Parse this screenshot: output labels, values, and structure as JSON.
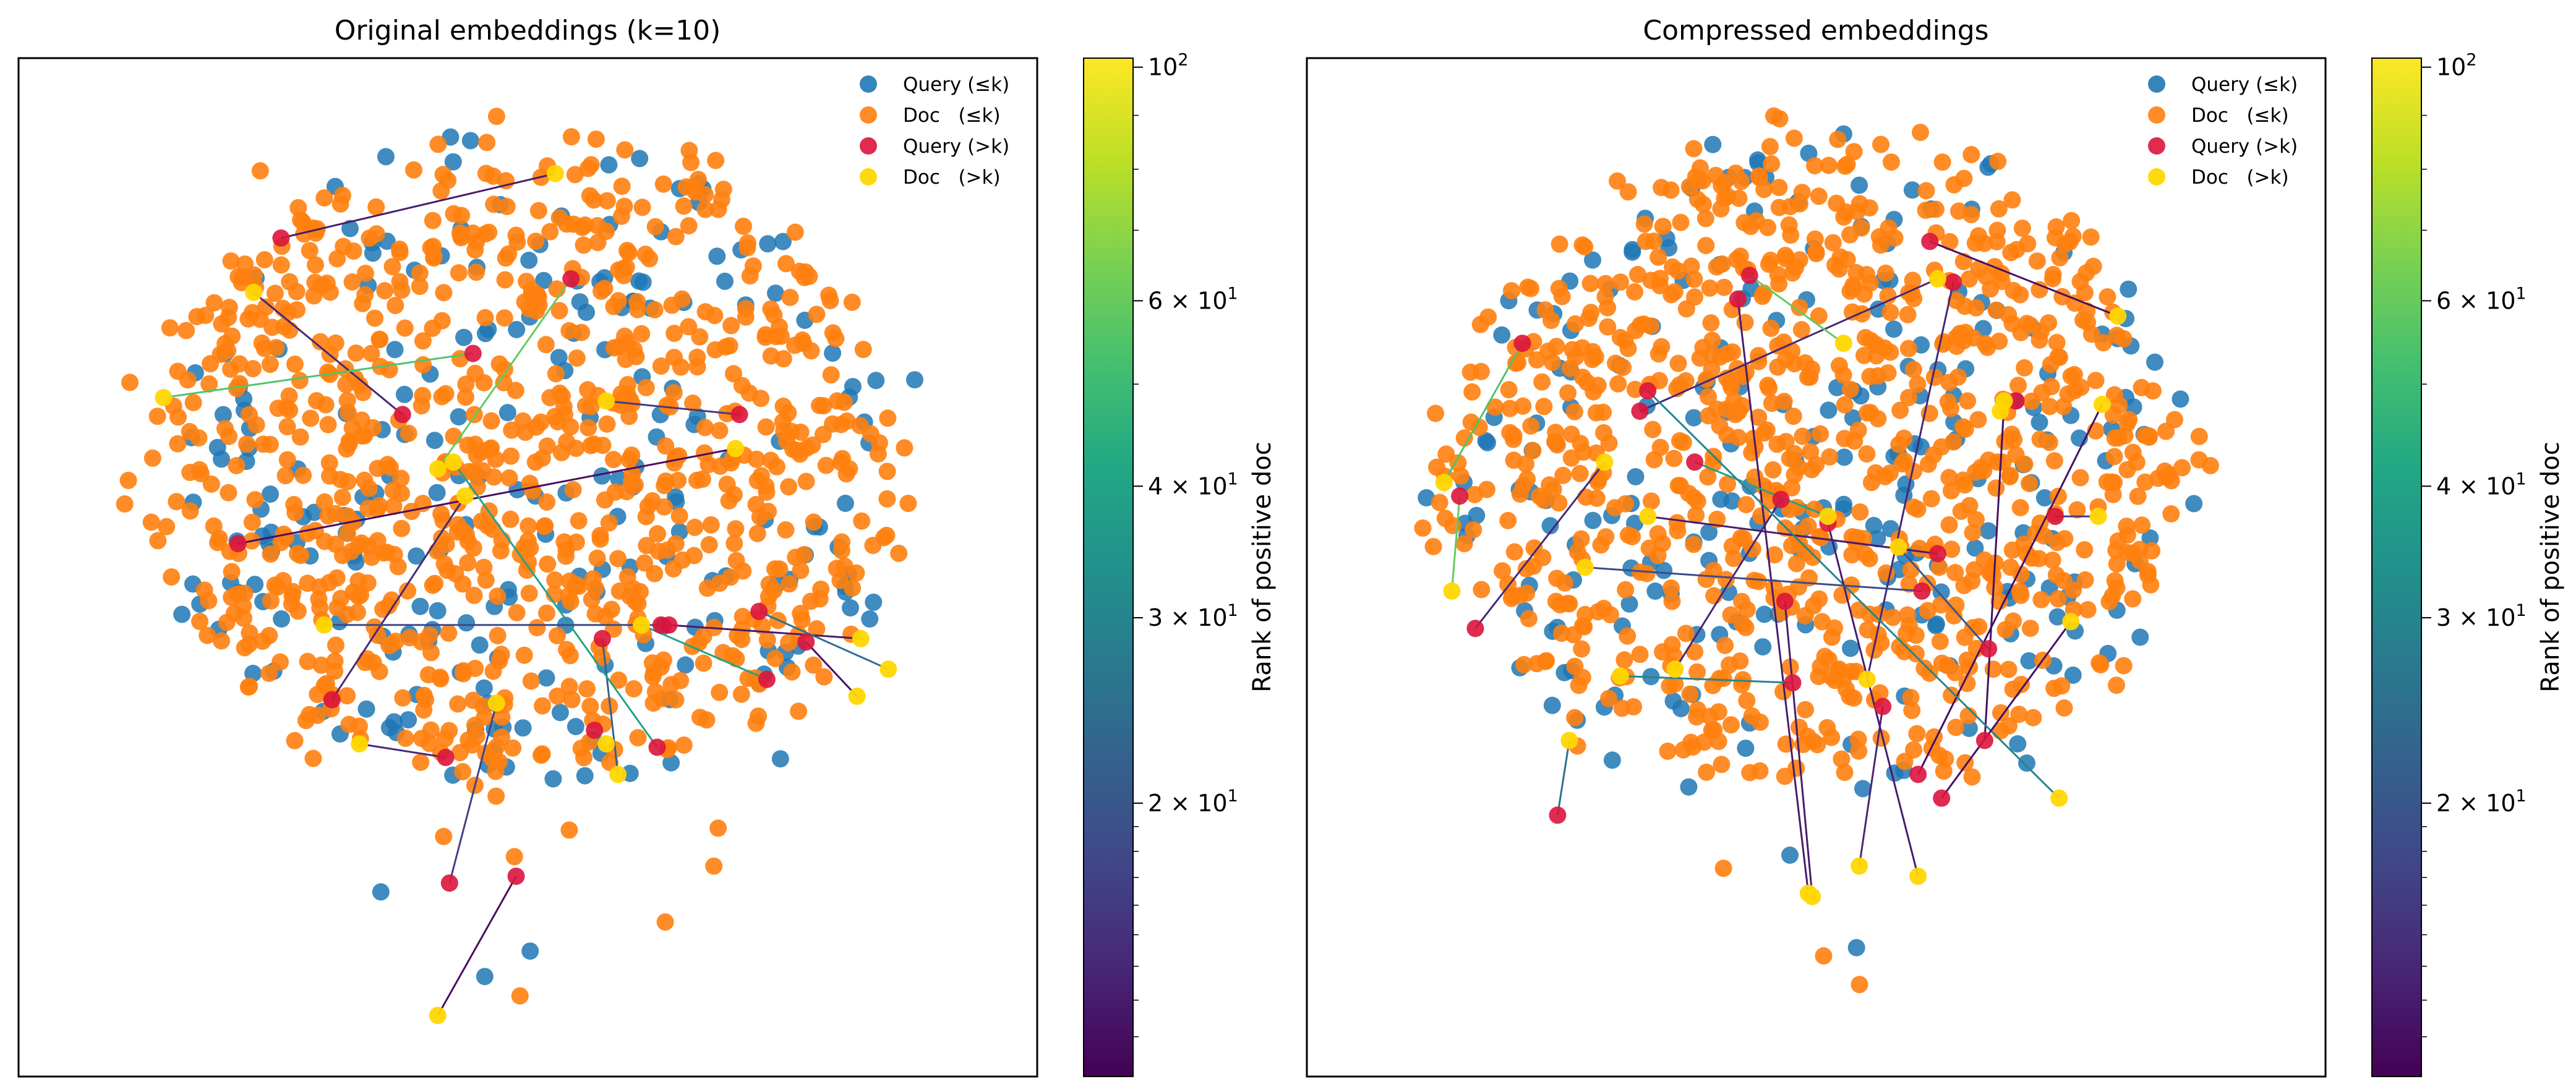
{
  "figure": {
    "colormap": "viridis",
    "colors": {
      "query_le_k": "#1f77b4",
      "doc_le_k": "#ff7f0e",
      "query_gt_k": "#dc143c",
      "doc_gt_k": "#ffd700"
    }
  },
  "chart_data": [
    {
      "type": "scatter",
      "title": "Original embeddings (k=10)",
      "legend": {
        "placement": "top-right",
        "entries": [
          "Query (≤k)",
          "Doc   (≤k)",
          "Query (>k)",
          "Doc   (>k)"
        ]
      },
      "axes_visible": false,
      "colorbar": {
        "label": "Rank of positive doc",
        "scale": "log",
        "range": [
          11,
          102
        ],
        "ticks": [
          {
            "value": 100,
            "base": "10",
            "exp": "2"
          },
          {
            "value": 60,
            "base": "6 × 10",
            "exp": "1"
          },
          {
            "value": 40,
            "base": "4 × 10",
            "exp": "1"
          },
          {
            "value": 30,
            "base": "3 × 10",
            "exp": "1"
          },
          {
            "value": 20,
            "base": "2 × 10",
            "exp": "1"
          }
        ]
      },
      "cloud": {
        "cx": 0,
        "cy": 0,
        "rx": 9.5,
        "ry": 9.5,
        "query_count": 230,
        "doc_count": 900,
        "seed": 7
      },
      "series": [
        {
          "name": "Query (>k)",
          "x": [
            -6.3,
            -3.2,
            -1.4,
            1.1,
            5.4,
            -7.4,
            3.6,
            5.9,
            7.1,
            -5.0,
            1.9,
            1.7,
            -2.1,
            -2.0,
            3.3,
            6.1,
            3.4,
            -0.3
          ],
          "y": [
            6.7,
            1.5,
            3.3,
            5.5,
            1.5,
            -2.3,
            -4.7,
            -4.3,
            -5.2,
            -6.9,
            -5.1,
            -7.8,
            -8.6,
            -12.3,
            -8.3,
            -6.3,
            -4.7,
            -12.1
          ]
        },
        {
          "name": "Doc   (>k)",
          "x": [
            0.7,
            -7.0,
            -9.3,
            -2.3,
            2.0,
            5.3,
            8.5,
            9.2,
            8.4,
            -1.6,
            2.3,
            2.0,
            -4.3,
            -0.8,
            -1.9,
            2.9,
            -5.2,
            -2.3
          ],
          "y": [
            8.6,
            5.1,
            2.0,
            -0.1,
            1.9,
            0.5,
            -5.1,
            -6.0,
            -6.8,
            -0.9,
            -9.1,
            -8.2,
            -8.2,
            -7.0,
            0.1,
            -4.7,
            -4.7,
            -16.2
          ]
        },
        {
          "name": "Pairs",
          "x_from": [
            -6.3,
            -3.2,
            -1.4,
            1.1,
            5.4,
            -7.4,
            3.6,
            5.9,
            7.1,
            -5.0,
            1.9,
            1.7,
            -2.1,
            -2.0,
            3.3,
            6.1,
            3.4,
            -0.3
          ],
          "y_from": [
            6.7,
            1.5,
            3.3,
            5.5,
            1.5,
            -2.3,
            -4.7,
            -4.3,
            -5.2,
            -6.9,
            -5.1,
            -7.8,
            -8.6,
            -12.3,
            -8.3,
            -6.3,
            -4.7,
            -12.1
          ],
          "x_to": [
            0.7,
            -7.0,
            -9.3,
            -2.3,
            2.0,
            5.3,
            8.5,
            9.2,
            8.4,
            -1.6,
            2.3,
            2.0,
            -4.3,
            -0.8,
            -1.9,
            2.9,
            -5.2,
            -2.3
          ],
          "y_to": [
            8.6,
            5.1,
            2.0,
            -0.1,
            1.9,
            0.5,
            -5.1,
            -6.0,
            -6.8,
            -0.9,
            -9.1,
            -8.2,
            -8.2,
            -7.0,
            0.1,
            -4.7,
            -4.7,
            -16.2
          ],
          "rank": [
            13,
            14,
            55,
            60,
            16,
            12,
            13,
            25,
            12,
            14,
            22,
            60,
            14,
            17,
            40,
            40,
            18,
            12
          ]
        }
      ]
    },
    {
      "type": "scatter",
      "title": "Compressed embeddings",
      "legend": {
        "placement": "top-right",
        "entries": [
          "Query (≤k)",
          "Doc   (≤k)",
          "Query (>k)",
          "Doc   (>k)"
        ]
      },
      "axes_visible": false,
      "colorbar": {
        "label": "Rank of positive doc",
        "scale": "log",
        "range": [
          11,
          102
        ],
        "ticks": [
          {
            "value": 100,
            "base": "10",
            "exp": "2"
          },
          {
            "value": 60,
            "base": "6 × 10",
            "exp": "1"
          },
          {
            "value": 40,
            "base": "4 × 10",
            "exp": "1"
          },
          {
            "value": 30,
            "base": "3 × 10",
            "exp": "1"
          },
          {
            "value": 20,
            "base": "2 × 10",
            "exp": "1"
          }
        ]
      },
      "cloud": {
        "cx": 0,
        "cy": 0,
        "rx": 9.5,
        "ry": 9.5,
        "query_count": 230,
        "doc_count": 900,
        "seed": 19
      },
      "series": [
        {
          "name": "Query (>k)",
          "x": [
            -2.0,
            2.9,
            3.5,
            -4.5,
            -7.5,
            -1.7,
            -0.9,
            4.3,
            3.1,
            -9.1,
            2.6,
            -6.6,
            -8.7,
            6.1,
            -3.1,
            -4.3,
            4.4,
            3.2,
            1.7,
            0.3,
            2.7,
            -0.6,
            5.1,
            -0.8
          ],
          "y": [
            4.9,
            6.6,
            5.4,
            1.6,
            3.6,
            5.6,
            -1.0,
            -8.1,
            -2.6,
            -0.9,
            -9.1,
            -10.3,
            -4.8,
            -1.5,
            0.1,
            2.2,
            -5.4,
            -9.8,
            -7.1,
            -1.7,
            -3.7,
            -6.4,
            1.9,
            -4.0
          ]
        },
        {
          "name": "Doc   (>k)",
          "x": [
            -0.2,
            7.7,
            1.3,
            3.1,
            -9.5,
            0.7,
            -3.6,
            4.8,
            -4.3,
            -9.3,
            7.3,
            -6.3,
            -5.4,
            7.2,
            0.3,
            6.2,
            2.1,
            6.5,
            1.1,
            2.6,
            -5.9,
            -5.0,
            4.7,
            -0.1
          ],
          "y": [
            -12.6,
            4.4,
            -6.3,
            5.5,
            -0.5,
            3.6,
            -6.0,
            1.9,
            -1.5,
            -3.7,
            1.8,
            -8.1,
            0.1,
            -1.5,
            -1.5,
            -9.8,
            -2.4,
            -4.6,
            -11.8,
            -12.1,
            -3.0,
            -6.2,
            1.6,
            -12.7
          ]
        },
        {
          "name": "Pairs",
          "x_from": [
            -2.0,
            2.9,
            3.5,
            -4.5,
            -7.5,
            -1.7,
            -0.9,
            4.3,
            3.1,
            -9.1,
            2.6,
            -6.6,
            -8.7,
            6.1,
            -3.1,
            -4.3,
            4.4,
            3.2,
            1.7,
            0.3,
            2.7,
            -0.6,
            5.1,
            -0.8
          ],
          "y_from": [
            4.9,
            6.6,
            5.4,
            1.6,
            3.6,
            5.6,
            -1.0,
            -8.1,
            -2.6,
            -0.9,
            -9.1,
            -10.3,
            -4.8,
            -1.5,
            0.1,
            2.2,
            -5.4,
            -9.8,
            -7.1,
            -1.7,
            -3.7,
            -6.4,
            1.9,
            -4.0
          ],
          "x_to": [
            -0.2,
            7.7,
            1.3,
            3.1,
            -9.5,
            0.7,
            -3.6,
            4.8,
            -4.3,
            -9.3,
            7.3,
            -6.3,
            -5.4,
            7.2,
            0.3,
            6.2,
            2.1,
            6.5,
            1.1,
            2.6,
            -5.9,
            -5.0,
            4.7,
            -0.1
          ],
          "y_to": [
            -12.6,
            4.4,
            -6.3,
            5.5,
            -0.5,
            3.6,
            -6.0,
            1.9,
            -1.5,
            -3.7,
            1.8,
            -8.1,
            0.1,
            -1.5,
            -1.5,
            -9.8,
            -2.4,
            -4.6,
            -11.8,
            -12.1,
            -3.0,
            -6.2,
            1.6,
            -12.7
          ],
          "rank": [
            13,
            12,
            14,
            14,
            55,
            60,
            14,
            12,
            13,
            60,
            12,
            25,
            14,
            16,
            40,
            30,
            20,
            12,
            14,
            13,
            18,
            30,
            25,
            13
          ]
        }
      ]
    }
  ]
}
